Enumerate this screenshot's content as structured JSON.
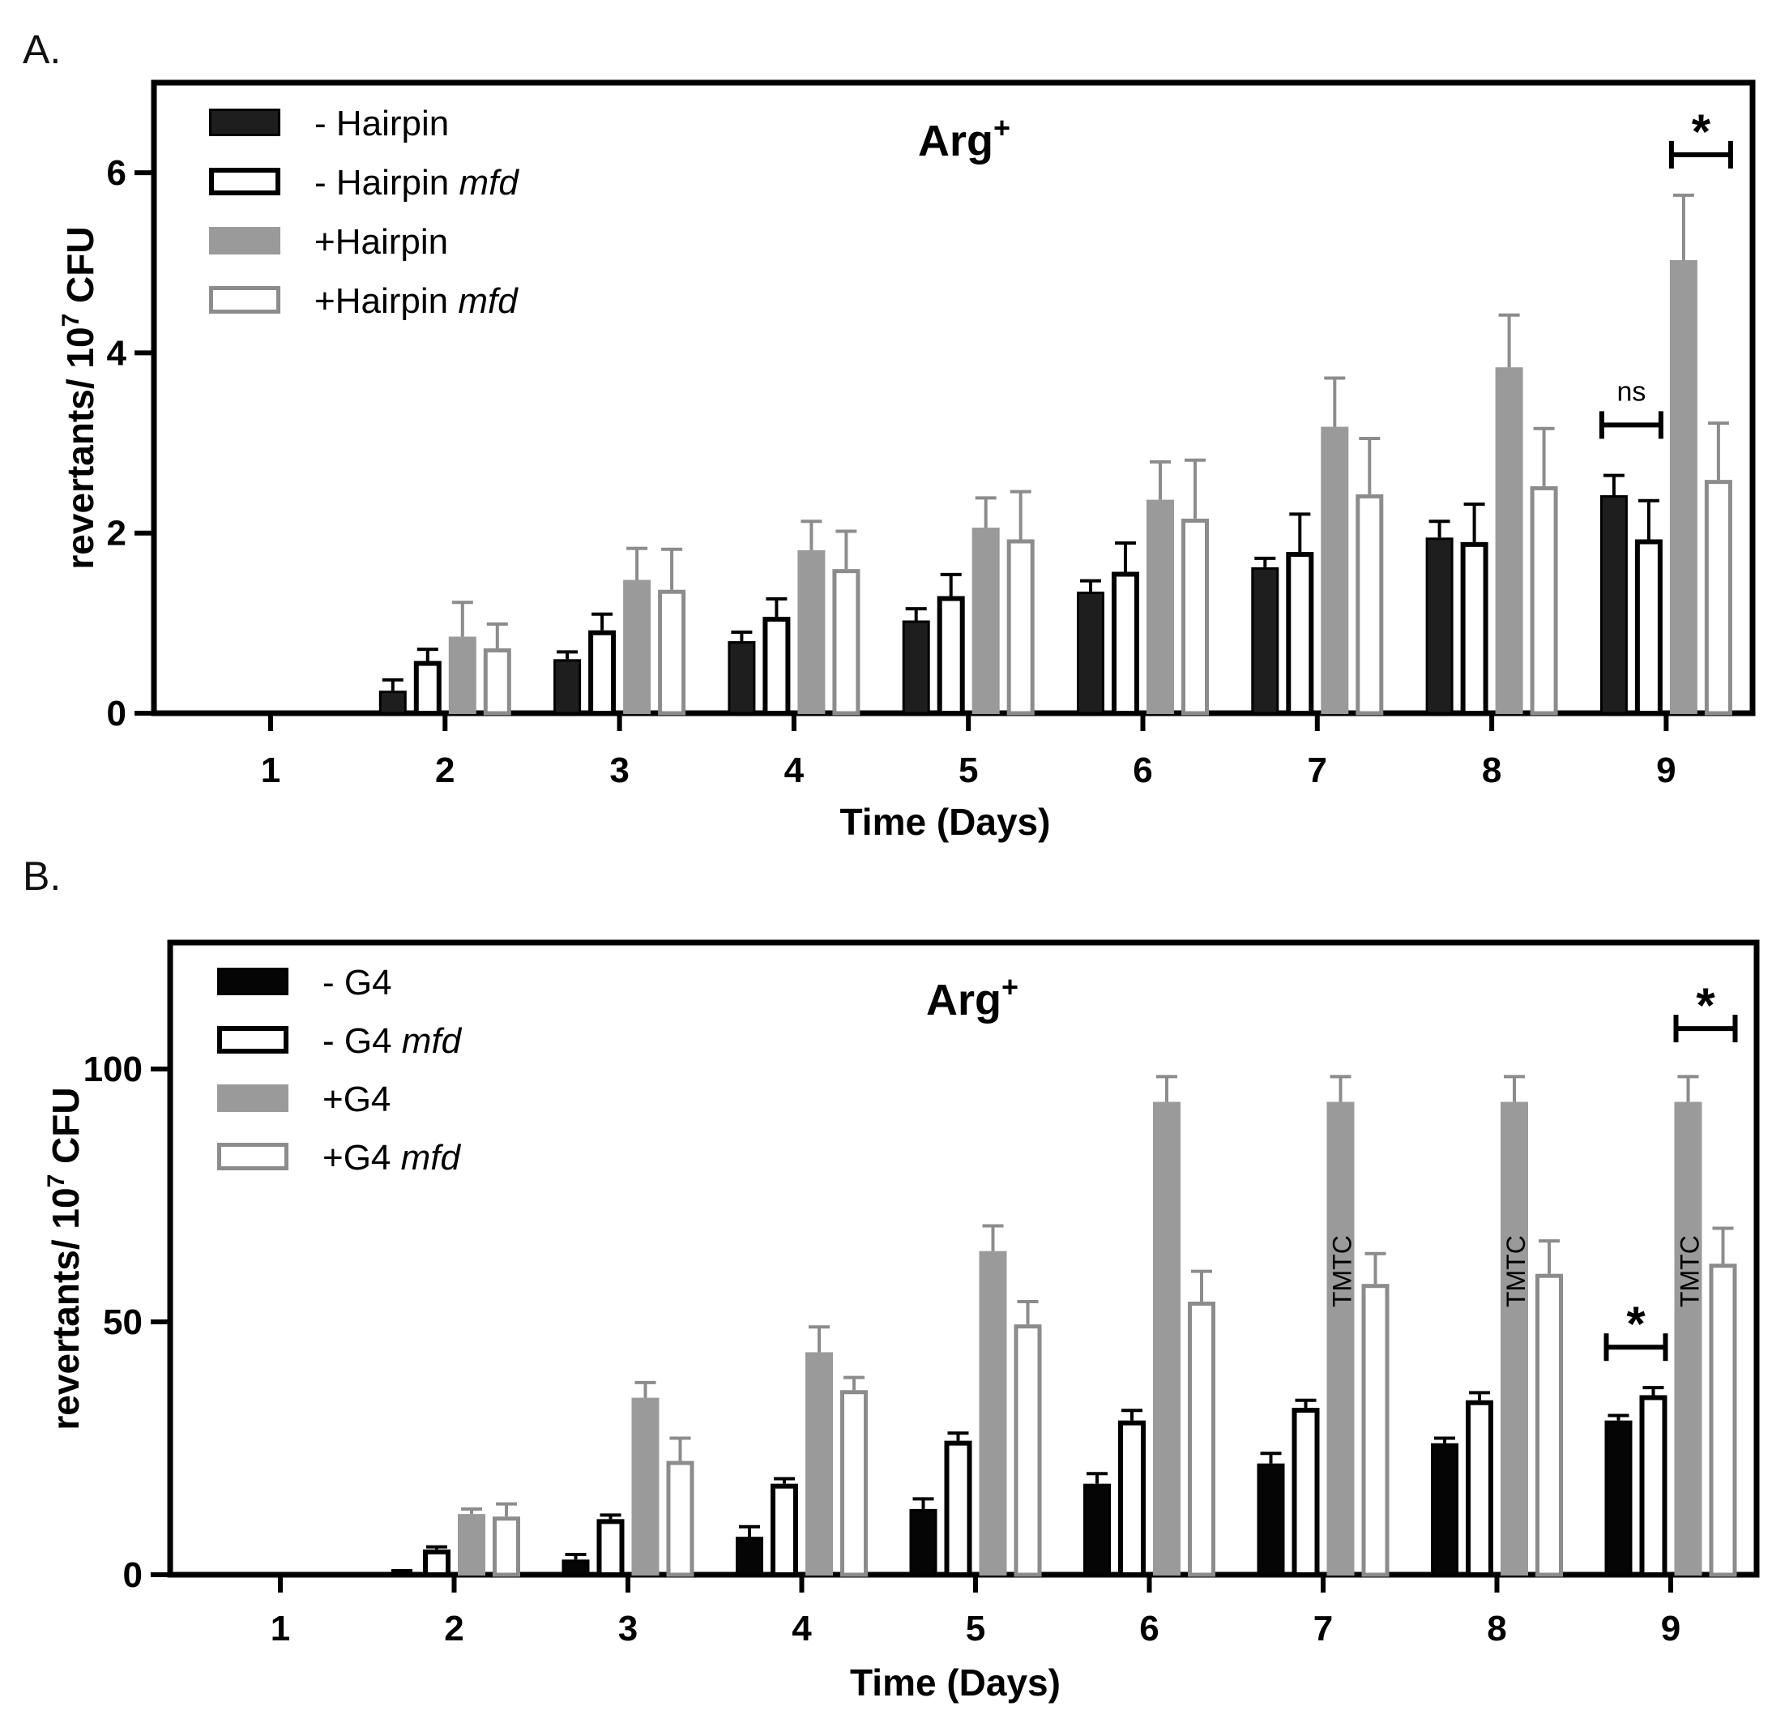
{
  "figure": {
    "panels": [
      "A.",
      "B."
    ]
  },
  "colors": {
    "black_fill": "#1e1e1e",
    "black_fill_b": "#050505",
    "gray_fill": "#9a9a9a",
    "gray_stroke": "#8c8c8c",
    "white": "#ffffff",
    "axis": "#000000"
  },
  "chart_data": [
    {
      "panel": "A.",
      "type": "bar",
      "title_main": "Arg",
      "title_sup": "+",
      "xlabel": "Time (Days)",
      "ylabel_main": "revertants/ 10",
      "ylabel_sup": "7",
      "ylabel_tail": " CFU",
      "ylim": [
        0,
        7
      ],
      "yticks": [
        0,
        2,
        4,
        6
      ],
      "categories": [
        "1",
        "2",
        "3",
        "4",
        "5",
        "6",
        "7",
        "8",
        "9"
      ],
      "legend_position": "top-left",
      "series": [
        {
          "name": "- Hairpin",
          "italic_suffix": "",
          "style": "black",
          "values": [
            0,
            0.25,
            0.6,
            0.8,
            1.03,
            1.35,
            1.62,
            1.95,
            2.42
          ],
          "errors": [
            0,
            0.12,
            0.08,
            0.1,
            0.13,
            0.12,
            0.1,
            0.18,
            0.22
          ]
        },
        {
          "name": "- Hairpin ",
          "italic_suffix": "mfd",
          "style": "black-outline",
          "values": [
            0,
            0.58,
            0.92,
            1.07,
            1.3,
            1.57,
            1.79,
            1.9,
            1.93
          ],
          "errors": [
            0,
            0.13,
            0.18,
            0.2,
            0.24,
            0.32,
            0.42,
            0.42,
            0.43
          ]
        },
        {
          "name": "+Hairpin",
          "italic_suffix": "",
          "style": "gray",
          "values": [
            0,
            0.85,
            1.48,
            1.81,
            2.06,
            2.37,
            3.18,
            3.84,
            5.03
          ],
          "errors": [
            0,
            0.38,
            0.35,
            0.32,
            0.33,
            0.42,
            0.54,
            0.58,
            0.72
          ]
        },
        {
          "name": "+Hairpin ",
          "italic_suffix": "mfd",
          "style": "gray-outline",
          "values": [
            0,
            0.72,
            1.37,
            1.6,
            1.93,
            2.16,
            2.43,
            2.52,
            2.59
          ],
          "errors": [
            0,
            0.27,
            0.45,
            0.42,
            0.53,
            0.65,
            0.62,
            0.64,
            0.63
          ]
        }
      ],
      "significance": [
        {
          "day": 9,
          "between": [
            0,
            1
          ],
          "label": "ns",
          "y": 3.2
        },
        {
          "day": 9,
          "between": [
            2,
            3
          ],
          "label": "*",
          "y": 6.2
        }
      ],
      "annotations": []
    },
    {
      "panel": "B.",
      "type": "bar",
      "title_main": "Arg",
      "title_sup": "+",
      "xlabel": "Time (Days)",
      "ylabel_main": "revertants/ 10",
      "ylabel_sup": "7",
      "ylabel_tail": " CFU",
      "ylim": [
        0,
        125
      ],
      "yticks": [
        0,
        50,
        100
      ],
      "categories": [
        "1",
        "2",
        "3",
        "4",
        "5",
        "6",
        "7",
        "8",
        "9"
      ],
      "legend_position": "top-left",
      "series": [
        {
          "name": "- G4",
          "italic_suffix": "",
          "style": "black",
          "values": [
            0,
            0.5,
            3,
            7.5,
            13,
            18,
            22,
            26,
            30.5
          ],
          "errors": [
            0,
            0.3,
            1,
            2,
            2,
            2,
            2,
            1,
            1
          ]
        },
        {
          "name": "- G4 ",
          "italic_suffix": "mfd",
          "style": "black-outline",
          "values": [
            0,
            5,
            11,
            18,
            26.5,
            30.5,
            33,
            34.5,
            35.5
          ],
          "errors": [
            0,
            0.5,
            0.8,
            1,
            1.5,
            2,
            1.5,
            1.5,
            1.5
          ]
        },
        {
          "name": "+G4",
          "italic_suffix": "",
          "style": "gray",
          "values": [
            0,
            12,
            35,
            44,
            64,
            93.5,
            93.5,
            93.5,
            93.5
          ],
          "errors": [
            0,
            1,
            3,
            5,
            5,
            5,
            5,
            5,
            5
          ]
        },
        {
          "name": "+G4 ",
          "italic_suffix": "mfd",
          "style": "gray-outline",
          "values": [
            0,
            11.5,
            22.5,
            36.5,
            49.5,
            54,
            57.5,
            59.5,
            61.5
          ],
          "errors": [
            0,
            2.5,
            4.5,
            2.5,
            4.5,
            6,
            6,
            6.5,
            7
          ]
        }
      ],
      "significance": [
        {
          "day": 9,
          "between": [
            0,
            1
          ],
          "label": "*",
          "y": 45
        },
        {
          "day": 9,
          "between": [
            2,
            3
          ],
          "label": "*",
          "y": 108
        }
      ],
      "annotations": [
        {
          "day": 7,
          "series": 2,
          "text": "TMTC",
          "y": 60
        },
        {
          "day": 8,
          "series": 2,
          "text": "TMTC",
          "y": 60
        },
        {
          "day": 9,
          "series": 2,
          "text": "TMTC",
          "y": 60
        }
      ]
    }
  ]
}
